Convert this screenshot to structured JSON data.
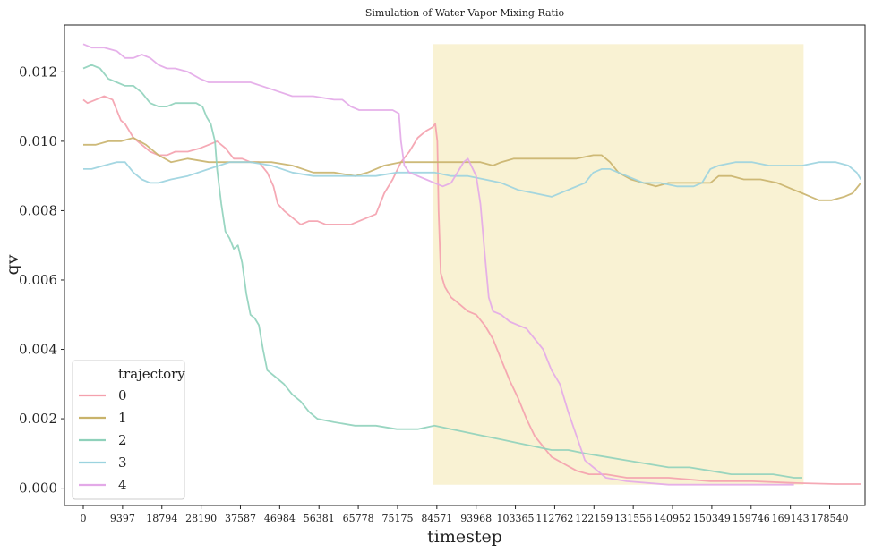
{
  "chart_data": {
    "type": "line",
    "title": "Simulation of Water Vapor Mixing Ratio",
    "xlabel": "timestep",
    "ylabel": "qv",
    "xlim": [
      -4500,
      187000
    ],
    "ylim": [
      -0.0005,
      0.01335
    ],
    "xticks": [
      0,
      9397,
      18794,
      28190,
      37587,
      46984,
      56381,
      65778,
      75175,
      84571,
      93968,
      103365,
      112762,
      122159,
      131556,
      140952,
      150349,
      159746,
      169143,
      178540
    ],
    "yticks": [
      0.0,
      0.002,
      0.004,
      0.006,
      0.008,
      0.01,
      0.012
    ],
    "ytick_labels": [
      "0.000",
      "0.002",
      "0.004",
      "0.006",
      "0.008",
      "0.010",
      "0.012"
    ],
    "grid": false,
    "legend": {
      "title": "trajectory",
      "placement": "bottom-left"
    },
    "shaded_region": {
      "x": [
        83600,
        172300
      ],
      "y": [
        0.0001,
        0.0128
      ],
      "color": "#f7edc4"
    },
    "series": [
      {
        "name": "0",
        "color": "#f4a0ad",
        "x": [
          0,
          1000,
          3000,
          5000,
          7000,
          9000,
          10000,
          12000,
          14000,
          16000,
          18000,
          20000,
          22000,
          25000,
          28000,
          30000,
          32000,
          34000,
          36000,
          38000,
          40000,
          42000,
          44000,
          45500,
          46500,
          48000,
          50000,
          52000,
          54000,
          56000,
          58000,
          60000,
          62000,
          64000,
          66000,
          68000,
          70000,
          72000,
          74000,
          76000,
          78000,
          80000,
          82000,
          83500,
          84200,
          84700,
          85000,
          85500,
          86500,
          88000,
          90000,
          92000,
          94000,
          96000,
          98000,
          100000,
          102000,
          104000,
          106000,
          108000,
          110000,
          112000,
          115000,
          118000,
          121000,
          125000,
          130000,
          140000,
          150000,
          160000,
          170000,
          180000,
          186000
        ],
        "y": [
          0.0112,
          0.0111,
          0.0112,
          0.0113,
          0.0112,
          0.0106,
          0.0105,
          0.0101,
          0.0099,
          0.0097,
          0.0096,
          0.0096,
          0.0097,
          0.0097,
          0.0098,
          0.0099,
          0.01,
          0.0098,
          0.0095,
          0.0095,
          0.0094,
          0.0094,
          0.0091,
          0.0087,
          0.0082,
          0.008,
          0.0078,
          0.0076,
          0.0077,
          0.0077,
          0.0076,
          0.0076,
          0.0076,
          0.0076,
          0.0077,
          0.0078,
          0.0079,
          0.0085,
          0.0089,
          0.0094,
          0.0097,
          0.0101,
          0.0103,
          0.0104,
          0.0105,
          0.01,
          0.008,
          0.0062,
          0.0058,
          0.0055,
          0.0053,
          0.0051,
          0.005,
          0.0047,
          0.0043,
          0.0037,
          0.0031,
          0.0026,
          0.002,
          0.0015,
          0.0012,
          0.0009,
          0.0007,
          0.0005,
          0.0004,
          0.0004,
          0.0003,
          0.0003,
          0.0002,
          0.0002,
          0.00015,
          0.00012,
          0.00012
        ]
      },
      {
        "name": "1",
        "color": "#c9b36b",
        "x": [
          0,
          3000,
          6000,
          9000,
          12000,
          15000,
          18000,
          21000,
          25000,
          30000,
          35000,
          40000,
          45000,
          50000,
          55000,
          60000,
          65000,
          68000,
          72000,
          76000,
          80000,
          84000,
          88000,
          92000,
          95000,
          98000,
          100000,
          103000,
          107000,
          110000,
          114000,
          118000,
          122000,
          124000,
          126000,
          128000,
          131000,
          134000,
          137000,
          140000,
          144000,
          148000,
          150000,
          152000,
          155000,
          158000,
          162000,
          166000,
          170000,
          172000,
          174000,
          176000,
          179000,
          182000,
          184000,
          186000
        ],
        "y": [
          0.0099,
          0.0099,
          0.01,
          0.01,
          0.0101,
          0.0099,
          0.0096,
          0.0094,
          0.0095,
          0.0094,
          0.0094,
          0.0094,
          0.0094,
          0.0093,
          0.0091,
          0.0091,
          0.009,
          0.0091,
          0.0093,
          0.0094,
          0.0094,
          0.0094,
          0.0094,
          0.0094,
          0.0094,
          0.0093,
          0.0094,
          0.0095,
          0.0095,
          0.0095,
          0.0095,
          0.0095,
          0.0096,
          0.0096,
          0.0094,
          0.0091,
          0.0089,
          0.0088,
          0.0087,
          0.0088,
          0.0088,
          0.0088,
          0.0088,
          0.009,
          0.009,
          0.0089,
          0.0089,
          0.0088,
          0.0086,
          0.0085,
          0.0084,
          0.0083,
          0.0083,
          0.0084,
          0.0085,
          0.0088
        ]
      },
      {
        "name": "2",
        "color": "#8fd1bb",
        "x": [
          0,
          2000,
          4000,
          6000,
          8000,
          10000,
          12000,
          14000,
          16000,
          18000,
          20000,
          22000,
          25000,
          27000,
          28500,
          29500,
          30500,
          31500,
          32000,
          33000,
          34000,
          35000,
          36000,
          37000,
          38000,
          39000,
          40000,
          41000,
          42000,
          43000,
          44000,
          45000,
          46000,
          48000,
          50000,
          52000,
          54000,
          56000,
          60000,
          65000,
          70000,
          75000,
          80000,
          84000,
          88000,
          92000,
          96000,
          100000,
          104000,
          108000,
          112000,
          116000,
          120000,
          125000,
          130000,
          135000,
          140000,
          145000,
          150000,
          155000,
          160000,
          165000,
          170000,
          172000
        ],
        "y": [
          0.0121,
          0.0122,
          0.0121,
          0.0118,
          0.0117,
          0.0116,
          0.0116,
          0.0114,
          0.0111,
          0.011,
          0.011,
          0.0111,
          0.0111,
          0.0111,
          0.011,
          0.0107,
          0.0105,
          0.01,
          0.0092,
          0.0082,
          0.0074,
          0.0072,
          0.0069,
          0.007,
          0.0065,
          0.0056,
          0.005,
          0.0049,
          0.0047,
          0.004,
          0.0034,
          0.0033,
          0.0032,
          0.003,
          0.0027,
          0.0025,
          0.0022,
          0.002,
          0.0019,
          0.0018,
          0.0018,
          0.0017,
          0.0017,
          0.0018,
          0.0017,
          0.0016,
          0.0015,
          0.0014,
          0.0013,
          0.0012,
          0.0011,
          0.0011,
          0.001,
          0.0009,
          0.0008,
          0.0007,
          0.0006,
          0.0006,
          0.0005,
          0.0004,
          0.0004,
          0.0004,
          0.0003,
          0.0003
        ]
      },
      {
        "name": "3",
        "color": "#9bd3df",
        "x": [
          0,
          2000,
          5000,
          8000,
          10000,
          12000,
          14000,
          16000,
          18000,
          21000,
          25000,
          30000,
          35000,
          40000,
          45000,
          50000,
          55000,
          60000,
          65000,
          70000,
          75000,
          80000,
          84000,
          88000,
          92000,
          96000,
          100000,
          104000,
          108000,
          112000,
          116000,
          120000,
          122000,
          124000,
          126000,
          130000,
          134000,
          138000,
          142000,
          146000,
          148000,
          150000,
          152000,
          156000,
          160000,
          164000,
          168000,
          172000,
          176000,
          180000,
          183000,
          185000,
          186000
        ],
        "y": [
          0.0092,
          0.0092,
          0.0093,
          0.0094,
          0.0094,
          0.0091,
          0.0089,
          0.0088,
          0.0088,
          0.0089,
          0.009,
          0.0092,
          0.0094,
          0.0094,
          0.0093,
          0.0091,
          0.009,
          0.009,
          0.009,
          0.009,
          0.0091,
          0.0091,
          0.0091,
          0.009,
          0.009,
          0.0089,
          0.0088,
          0.0086,
          0.0085,
          0.0084,
          0.0086,
          0.0088,
          0.0091,
          0.0092,
          0.0092,
          0.009,
          0.0088,
          0.0088,
          0.0087,
          0.0087,
          0.0088,
          0.0092,
          0.0093,
          0.0094,
          0.0094,
          0.0093,
          0.0093,
          0.0093,
          0.0094,
          0.0094,
          0.0093,
          0.0091,
          0.0089
        ]
      },
      {
        "name": "4",
        "color": "#e3a9e8",
        "x": [
          0,
          2000,
          5000,
          8000,
          10000,
          12000,
          14000,
          16000,
          18000,
          20000,
          22000,
          25000,
          28000,
          30000,
          32000,
          35000,
          40000,
          45000,
          50000,
          55000,
          60000,
          62000,
          64000,
          66000,
          70000,
          74000,
          75500,
          76000,
          76800,
          78000,
          80000,
          82000,
          84000,
          86000,
          88000,
          90000,
          91000,
          92000,
          94000,
          95000,
          96000,
          97000,
          98000,
          100000,
          102000,
          104000,
          106000,
          108000,
          110000,
          112000,
          114000,
          116000,
          118000,
          120000,
          125000,
          130000,
          140000,
          150000,
          160000,
          170000
        ],
        "y": [
          0.0128,
          0.0127,
          0.0127,
          0.0126,
          0.0124,
          0.0124,
          0.0125,
          0.0124,
          0.0122,
          0.0121,
          0.0121,
          0.012,
          0.0118,
          0.0117,
          0.0117,
          0.0117,
          0.0117,
          0.0115,
          0.0113,
          0.0113,
          0.0112,
          0.0112,
          0.011,
          0.0109,
          0.0109,
          0.0109,
          0.0108,
          0.01,
          0.0093,
          0.0091,
          0.009,
          0.0089,
          0.0088,
          0.0087,
          0.0088,
          0.0092,
          0.0094,
          0.0095,
          0.009,
          0.0082,
          0.0068,
          0.0055,
          0.0051,
          0.005,
          0.0048,
          0.0047,
          0.0046,
          0.0043,
          0.004,
          0.0034,
          0.003,
          0.0022,
          0.0015,
          0.0008,
          0.0003,
          0.0002,
          0.0001,
          0.0001,
          0.0001,
          0.0001
        ]
      }
    ]
  }
}
